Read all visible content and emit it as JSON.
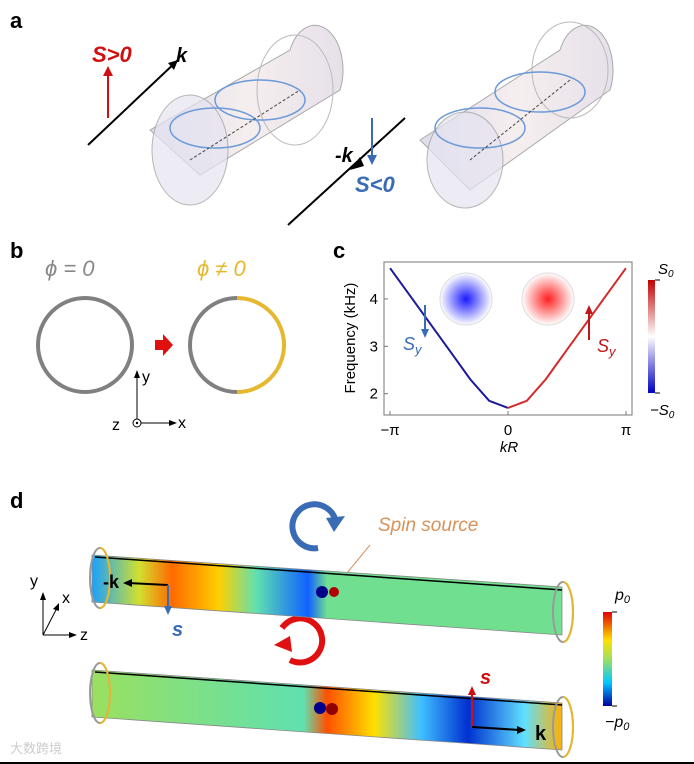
{
  "panels": {
    "a": {
      "label": "a",
      "s_pos": "S>0",
      "k": "k",
      "minus_k": "-k",
      "s_neg": "S<0"
    },
    "b": {
      "label": "b",
      "phi_zero": "ϕ = 0",
      "phi_nonzero": "ϕ ≠ 0",
      "axis_y": "y",
      "axis_x": "x",
      "axis_z": "z"
    },
    "c": {
      "label": "c",
      "sy_left": "S",
      "sy_right": "S",
      "sub": "y",
      "cbar_top": "S",
      "cbar_bottom": "−S",
      "cbar_sub": "0"
    },
    "d": {
      "label": "d",
      "spin_source": "Spin source",
      "minus_k": "-k",
      "s_top": "s",
      "s_bottom": "s",
      "k": "k",
      "axis_y": "y",
      "axis_x": "x",
      "axis_z": "z",
      "cbar_top": "p",
      "cbar_bottom": "−p",
      "cbar_sub": "0"
    }
  },
  "colors": {
    "red": "#e0161b",
    "blue": "#3a6bb5",
    "gold": "#e6b830",
    "gray": "#808080"
  },
  "watermark": "大数跨境",
  "chart_data": {
    "type": "line",
    "xlabel": "kR",
    "ylabel": "Frequency (kHz)",
    "x_ticks": [
      "−π",
      "0",
      "π"
    ],
    "y_ticks": [
      "2",
      "3",
      "4"
    ],
    "xlim": [
      -3.14159,
      3.14159
    ],
    "ylim": [
      1.55,
      4.78
    ],
    "series": [
      {
        "color": "#1a1a9c",
        "x": [
          -3.14,
          -2.5,
          -2.0,
          -1.5,
          -1.0,
          -0.5,
          0
        ],
        "y": [
          4.65,
          3.95,
          3.4,
          2.85,
          2.3,
          1.85,
          1.7
        ]
      },
      {
        "color": "#d42a2a",
        "x": [
          0,
          0.5,
          1.0,
          1.5,
          2.0,
          2.5,
          3.14
        ],
        "y": [
          1.7,
          1.85,
          2.3,
          2.85,
          3.4,
          3.95,
          4.65
        ]
      }
    ]
  }
}
